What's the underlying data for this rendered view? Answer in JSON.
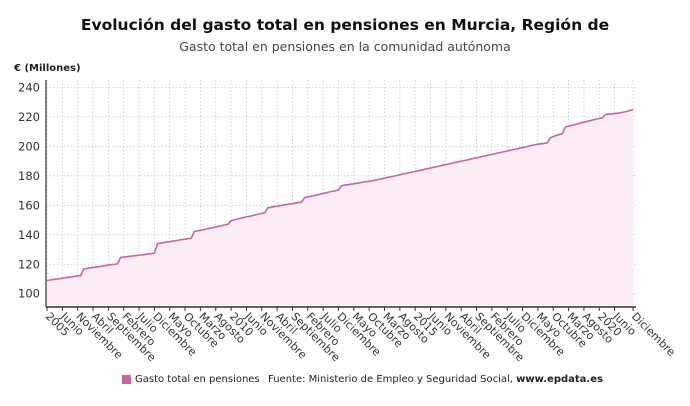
{
  "chart_data": {
    "type": "area",
    "title": "Evolución del gasto total en pensiones en Murcia, Región de",
    "subtitle": "Gasto total en pensiones en la comunidad autónoma",
    "ylabel": "€ (Millones)",
    "xlabel": "",
    "ylim": [
      91,
      245
    ],
    "yticks": [
      100,
      120,
      140,
      160,
      180,
      200,
      220,
      240
    ],
    "grid": true,
    "x_start": "2005-01",
    "x_end": "2020-12",
    "xtick_labels": [
      "2005",
      "Junio",
      "Noviembre",
      "Abril",
      "Septiembre",
      "Febrero",
      "Julio",
      "Diciembre",
      "Mayo",
      "Octubre",
      "Marzo",
      "Agosto",
      "2010",
      "Junio",
      "Noviembre",
      "Abril",
      "Septiembre",
      "Febrero",
      "Julio",
      "Diciembre",
      "Mayo",
      "Octubre",
      "Marzo",
      "Agosto",
      "2015",
      "Junio",
      "Noviembre",
      "Abril",
      "Septiembre",
      "Febrero",
      "Julio",
      "Diciembre",
      "Mayo",
      "Octubre",
      "Marzo",
      "Agosto",
      "2020",
      "Junio",
      "Diciembre"
    ],
    "series": [
      {
        "name": "Gasto total en pensiones",
        "color": "#c2679f",
        "fill": "#fcecf6",
        "values": [
          109.0,
          109.3,
          109.6,
          109.9,
          110.2,
          110.5,
          110.9,
          111.2,
          111.5,
          111.8,
          112.1,
          112.4,
          116.9,
          117.2,
          117.5,
          117.8,
          118.1,
          118.4,
          118.8,
          119.1,
          119.4,
          119.7,
          120.0,
          120.3,
          124.6,
          124.9,
          125.1,
          125.4,
          125.6,
          125.9,
          126.2,
          126.4,
          126.7,
          127.0,
          127.2,
          127.5,
          134.0,
          134.3,
          134.7,
          135.0,
          135.3,
          135.7,
          136.0,
          136.4,
          136.7,
          137.0,
          137.4,
          137.7,
          142.2,
          142.6,
          143.1,
          143.5,
          144.0,
          144.4,
          144.9,
          145.3,
          145.8,
          146.2,
          146.7,
          147.1,
          149.6,
          150.1,
          150.6,
          151.1,
          151.6,
          152.1,
          152.5,
          153.0,
          153.5,
          154.0,
          154.5,
          155.0,
          158.4,
          158.7,
          159.1,
          159.4,
          159.8,
          160.1,
          160.5,
          160.8,
          161.1,
          161.5,
          161.8,
          162.2,
          165.2,
          165.7,
          166.1,
          166.6,
          167.1,
          167.5,
          168.0,
          168.5,
          169.0,
          169.4,
          169.9,
          170.4,
          173.3,
          173.6,
          174.0,
          174.3,
          174.6,
          175.0,
          175.3,
          175.7,
          176.0,
          176.3,
          176.7,
          177.0,
          177.5,
          177.9,
          178.4,
          178.9,
          179.3,
          179.8,
          180.2,
          180.7,
          181.2,
          181.6,
          182.1,
          182.5,
          183.0,
          183.5,
          183.9,
          184.4,
          184.8,
          185.3,
          185.8,
          186.2,
          186.7,
          187.2,
          187.6,
          188.1,
          188.5,
          189.0,
          189.5,
          189.9,
          190.4,
          190.8,
          191.3,
          191.8,
          192.2,
          192.7,
          193.2,
          193.6,
          194.1,
          194.5,
          195.0,
          195.5,
          195.9,
          196.4,
          196.8,
          197.3,
          197.8,
          198.2,
          198.7,
          199.1,
          199.6,
          200.1,
          200.6,
          201.0,
          201.4,
          201.7,
          202.0,
          202.3,
          205.8,
          206.6,
          207.4,
          208.1,
          208.7,
          213.2,
          213.7,
          214.3,
          214.8,
          215.3,
          215.9,
          216.4,
          216.9,
          217.4,
          218.0,
          218.5,
          218.9,
          219.2,
          221.6,
          221.8,
          222.0,
          222.2,
          222.5,
          222.8,
          223.2,
          223.7,
          224.3,
          225.0
        ]
      }
    ],
    "legend_position": "bottom-left",
    "source": "Fuente: Ministerio de Empleo y Seguridad Social,",
    "source_site": "www.epdata.es"
  }
}
